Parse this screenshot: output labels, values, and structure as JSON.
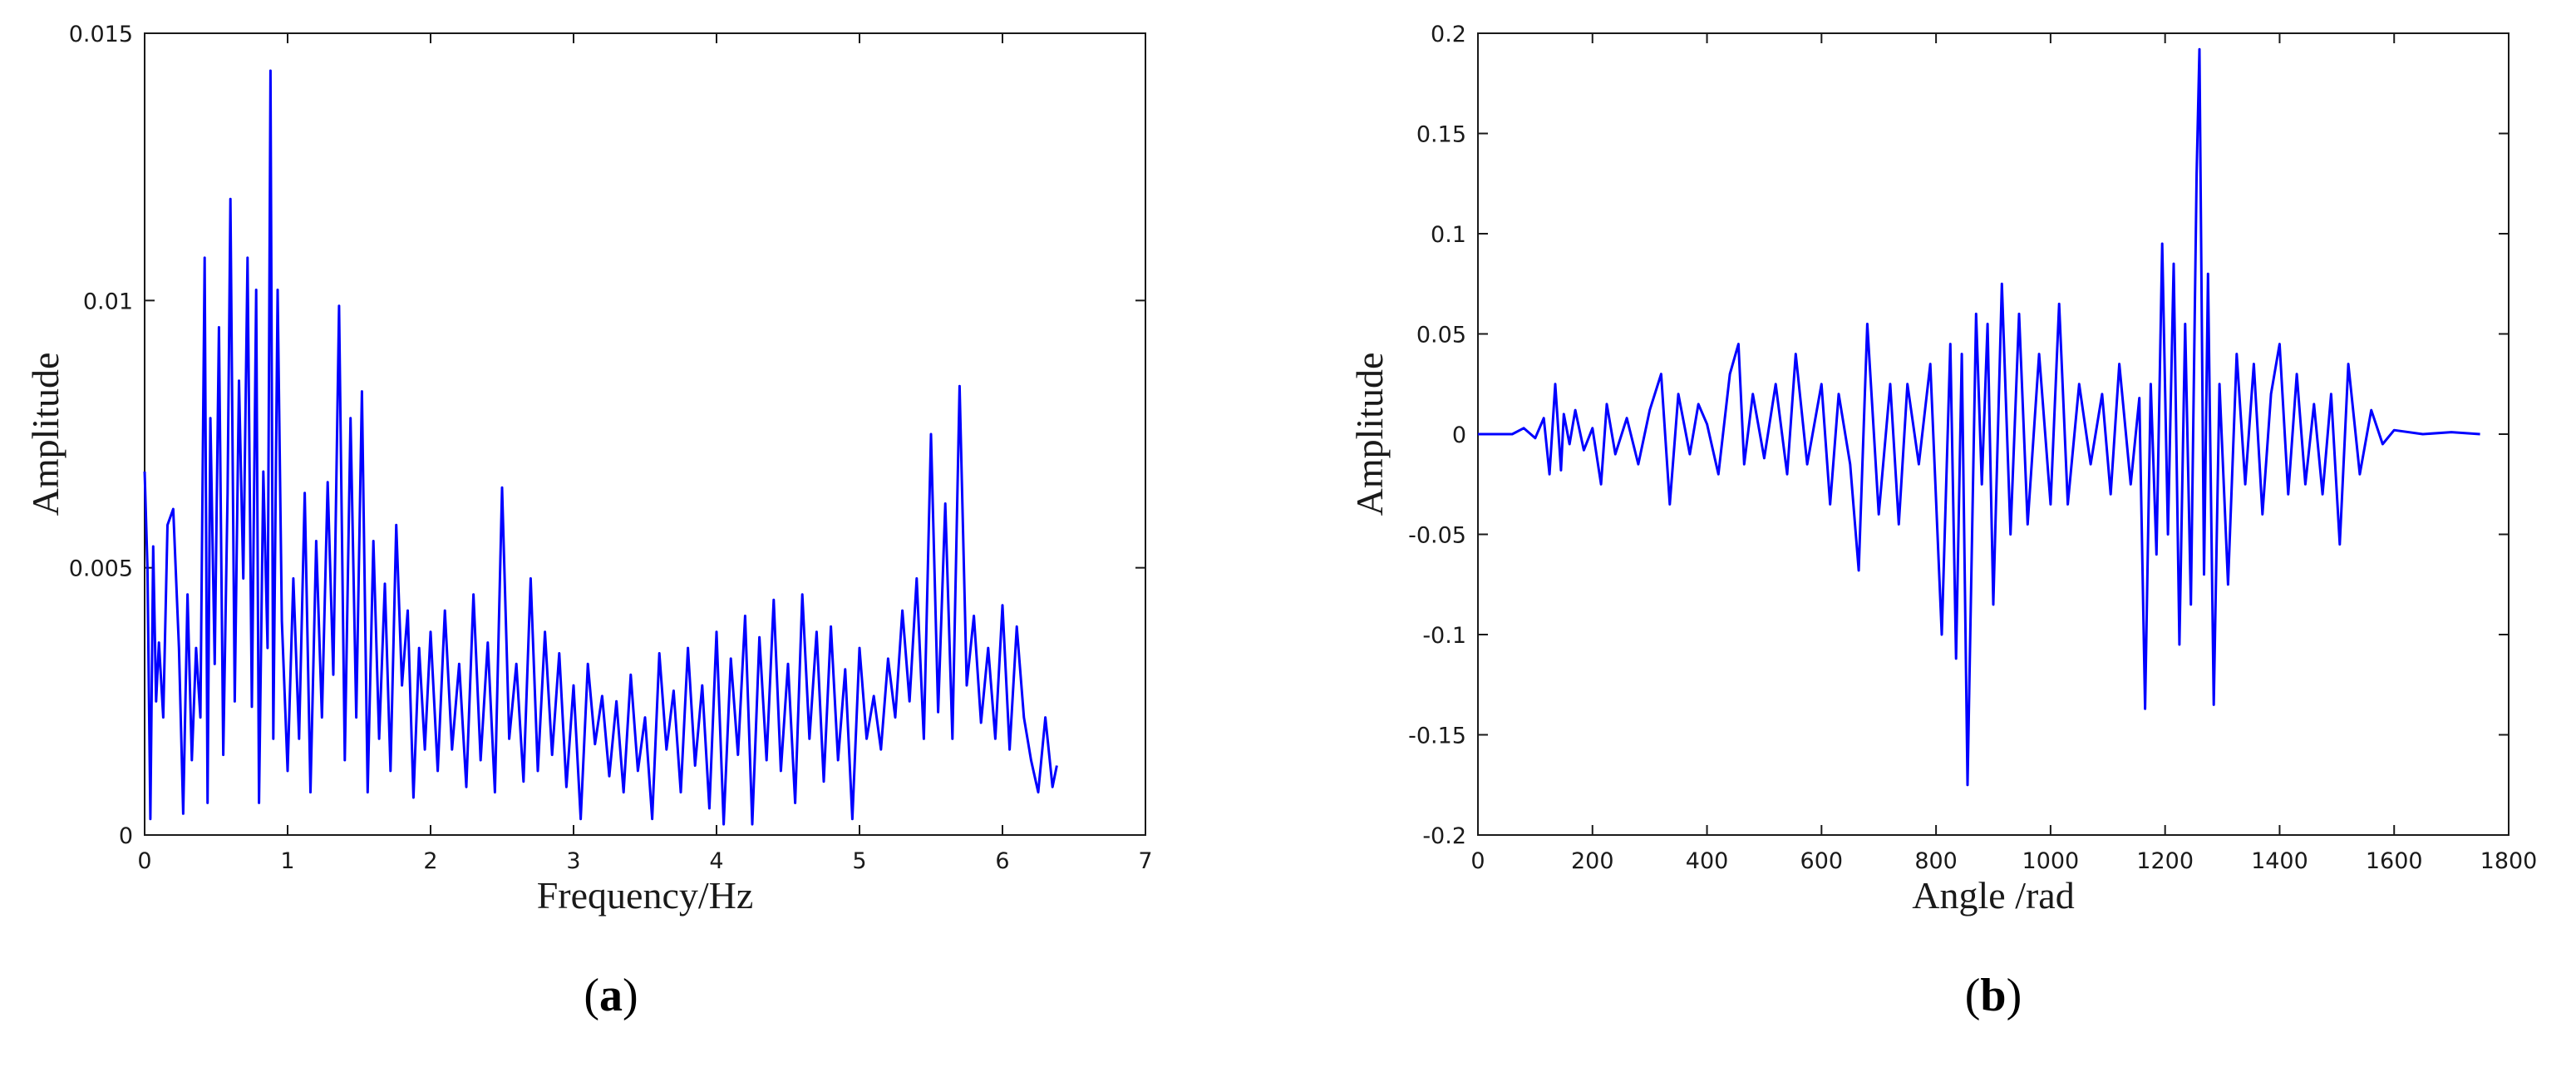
{
  "chart_data": [
    {
      "id": "a",
      "type": "line",
      "caption": "a",
      "xlabel": "Frequency/Hz",
      "ylabel": "Amplitude",
      "xlim": [
        0,
        7
      ],
      "ylim": [
        0,
        0.015
      ],
      "xticks": [
        "0",
        "1",
        "2",
        "3",
        "4",
        "5",
        "6",
        "7"
      ],
      "yticks": [
        "0",
        "0.005",
        "0.01",
        "0.015"
      ],
      "xtick_values": [
        0,
        1,
        2,
        3,
        4,
        5,
        6,
        7
      ],
      "ytick_values": [
        0,
        0.005,
        0.01,
        0.015
      ],
      "series": [
        {
          "color": "#0000ff",
          "x": [
            0,
            0.02,
            0.04,
            0.06,
            0.08,
            0.1,
            0.13,
            0.16,
            0.2,
            0.24,
            0.27,
            0.3,
            0.33,
            0.36,
            0.39,
            0.42,
            0.44,
            0.46,
            0.49,
            0.52,
            0.55,
            0.58,
            0.6,
            0.63,
            0.66,
            0.69,
            0.72,
            0.75,
            0.78,
            0.8,
            0.83,
            0.86,
            0.88,
            0.9,
            0.93,
            0.96,
            1.0,
            1.04,
            1.08,
            1.12,
            1.16,
            1.2,
            1.24,
            1.28,
            1.32,
            1.36,
            1.4,
            1.44,
            1.48,
            1.52,
            1.56,
            1.6,
            1.64,
            1.68,
            1.72,
            1.76,
            1.8,
            1.84,
            1.88,
            1.92,
            1.96,
            2.0,
            2.05,
            2.1,
            2.15,
            2.2,
            2.25,
            2.3,
            2.35,
            2.4,
            2.45,
            2.5,
            2.55,
            2.6,
            2.65,
            2.7,
            2.75,
            2.8,
            2.85,
            2.9,
            2.95,
            3.0,
            3.05,
            3.1,
            3.15,
            3.2,
            3.25,
            3.3,
            3.35,
            3.4,
            3.45,
            3.5,
            3.55,
            3.6,
            3.65,
            3.7,
            3.75,
            3.8,
            3.85,
            3.9,
            3.95,
            4.0,
            4.05,
            4.1,
            4.15,
            4.2,
            4.25,
            4.3,
            4.35,
            4.4,
            4.45,
            4.5,
            4.55,
            4.6,
            4.65,
            4.7,
            4.75,
            4.8,
            4.85,
            4.9,
            4.95,
            5.0,
            5.05,
            5.1,
            5.15,
            5.2,
            5.25,
            5.3,
            5.35,
            5.4,
            5.45,
            5.5,
            5.55,
            5.6,
            5.65,
            5.7,
            5.75,
            5.8,
            5.85,
            5.9,
            5.95,
            6.0,
            6.05,
            6.1,
            6.15,
            6.2,
            6.25,
            6.3,
            6.35,
            6.38
          ],
          "y": [
            0.0068,
            0.005,
            0.0003,
            0.0054,
            0.0025,
            0.0036,
            0.0022,
            0.0058,
            0.0061,
            0.0035,
            0.0004,
            0.0045,
            0.0014,
            0.0035,
            0.0022,
            0.0108,
            0.0006,
            0.0078,
            0.0032,
            0.0095,
            0.0015,
            0.0064,
            0.0119,
            0.0025,
            0.0085,
            0.0048,
            0.0108,
            0.0024,
            0.0102,
            0.0006,
            0.0068,
            0.0035,
            0.0143,
            0.0018,
            0.0102,
            0.004,
            0.0012,
            0.0048,
            0.0018,
            0.0064,
            0.0008,
            0.0055,
            0.0022,
            0.0066,
            0.003,
            0.0099,
            0.0014,
            0.0078,
            0.0022,
            0.0083,
            0.0008,
            0.0055,
            0.0018,
            0.0047,
            0.0012,
            0.0058,
            0.0028,
            0.0042,
            0.0007,
            0.0035,
            0.0016,
            0.0038,
            0.0012,
            0.0042,
            0.0016,
            0.0032,
            0.0009,
            0.0045,
            0.0014,
            0.0036,
            0.0008,
            0.0065,
            0.0018,
            0.0032,
            0.001,
            0.0048,
            0.0012,
            0.0038,
            0.0015,
            0.0034,
            0.0009,
            0.0028,
            0.0003,
            0.0032,
            0.0017,
            0.0026,
            0.0011,
            0.0025,
            0.0008,
            0.003,
            0.0012,
            0.0022,
            0.0003,
            0.0034,
            0.0016,
            0.0027,
            0.0008,
            0.0035,
            0.0013,
            0.0028,
            0.0005,
            0.0038,
            0.0002,
            0.0033,
            0.0015,
            0.0041,
            0.0002,
            0.0037,
            0.0014,
            0.0044,
            0.0012,
            0.0032,
            0.0006,
            0.0045,
            0.0018,
            0.0038,
            0.001,
            0.0039,
            0.0014,
            0.0031,
            0.0003,
            0.0035,
            0.0018,
            0.0026,
            0.0016,
            0.0033,
            0.0022,
            0.0042,
            0.0025,
            0.0048,
            0.0018,
            0.0075,
            0.0023,
            0.0062,
            0.0018,
            0.0084,
            0.0028,
            0.0041,
            0.0021,
            0.0035,
            0.0018,
            0.0043,
            0.0016,
            0.0039,
            0.0022,
            0.0014,
            0.0008,
            0.0022,
            0.0009,
            0.0013
          ]
        }
      ]
    },
    {
      "id": "b",
      "type": "line",
      "caption": "b",
      "xlabel": "Angle /rad",
      "ylabel": "Amplitude",
      "xlim": [
        0,
        1800
      ],
      "ylim": [
        -0.2,
        0.2
      ],
      "xticks": [
        "0",
        "200",
        "400",
        "600",
        "800",
        "1000",
        "1200",
        "1400",
        "1600",
        "1800"
      ],
      "yticks": [
        "-0.2",
        "-0.15",
        "-0.1",
        "-0.05",
        "0",
        "0.05",
        "0.1",
        "0.15",
        "0.2"
      ],
      "xtick_values": [
        0,
        200,
        400,
        600,
        800,
        1000,
        1200,
        1400,
        1600,
        1800
      ],
      "ytick_values": [
        -0.2,
        -0.15,
        -0.1,
        -0.05,
        0,
        0.05,
        0.1,
        0.15,
        0.2
      ],
      "series": [
        {
          "color": "#0000ff",
          "x": [
            0,
            60,
            80,
            100,
            115,
            125,
            135,
            145,
            150,
            160,
            170,
            185,
            200,
            215,
            225,
            240,
            260,
            280,
            300,
            320,
            335,
            350,
            370,
            385,
            400,
            420,
            440,
            455,
            465,
            480,
            500,
            520,
            540,
            555,
            575,
            600,
            615,
            630,
            650,
            665,
            680,
            700,
            720,
            735,
            750,
            770,
            790,
            810,
            825,
            835,
            845,
            855,
            870,
            880,
            890,
            900,
            915,
            930,
            945,
            960,
            980,
            1000,
            1015,
            1030,
            1050,
            1070,
            1090,
            1105,
            1120,
            1140,
            1155,
            1165,
            1175,
            1185,
            1195,
            1205,
            1215,
            1225,
            1235,
            1245,
            1255,
            1260,
            1268,
            1275,
            1285,
            1295,
            1310,
            1325,
            1340,
            1355,
            1370,
            1385,
            1400,
            1415,
            1430,
            1445,
            1460,
            1475,
            1490,
            1505,
            1520,
            1540,
            1560,
            1580,
            1600,
            1650,
            1700,
            1750
          ],
          "y": [
            0,
            0,
            0.003,
            -0.002,
            0.008,
            -0.02,
            0.025,
            -0.018,
            0.01,
            -0.005,
            0.012,
            -0.008,
            0.003,
            -0.025,
            0.015,
            -0.01,
            0.008,
            -0.015,
            0.012,
            0.03,
            -0.035,
            0.02,
            -0.01,
            0.015,
            0.005,
            -0.02,
            0.03,
            0.045,
            -0.015,
            0.02,
            -0.012,
            0.025,
            -0.02,
            0.04,
            -0.015,
            0.025,
            -0.035,
            0.02,
            -0.015,
            -0.068,
            0.055,
            -0.04,
            0.025,
            -0.045,
            0.025,
            -0.015,
            0.035,
            -0.1,
            0.045,
            -0.112,
            0.04,
            -0.175,
            0.06,
            -0.025,
            0.055,
            -0.085,
            0.075,
            -0.05,
            0.06,
            -0.045,
            0.04,
            -0.035,
            0.065,
            -0.035,
            0.025,
            -0.015,
            0.02,
            -0.03,
            0.035,
            -0.025,
            0.018,
            -0.137,
            0.025,
            -0.06,
            0.095,
            -0.05,
            0.085,
            -0.105,
            0.055,
            -0.085,
            0.13,
            0.192,
            -0.07,
            0.08,
            -0.135,
            0.025,
            -0.075,
            0.04,
            -0.025,
            0.035,
            -0.04,
            0.02,
            0.045,
            -0.03,
            0.03,
            -0.025,
            0.015,
            -0.03,
            0.02,
            -0.055,
            0.035,
            -0.02,
            0.012,
            -0.005,
            0.002,
            0,
            0.001,
            0
          ]
        }
      ]
    }
  ]
}
